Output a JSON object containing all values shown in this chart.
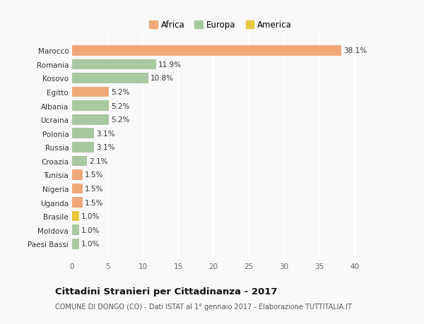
{
  "categories": [
    "Paesi Bassi",
    "Moldova",
    "Brasile",
    "Uganda",
    "Nigeria",
    "Tunisia",
    "Croazia",
    "Russia",
    "Polonia",
    "Ucraina",
    "Albania",
    "Egitto",
    "Kosovo",
    "Romania",
    "Marocco"
  ],
  "values": [
    1.0,
    1.0,
    1.0,
    1.5,
    1.5,
    1.5,
    2.1,
    3.1,
    3.1,
    5.2,
    5.2,
    5.2,
    10.8,
    11.9,
    38.1
  ],
  "colors": [
    "#a8c8a0",
    "#a8c8a0",
    "#e8c840",
    "#f0a878",
    "#f0a878",
    "#f0a878",
    "#a8c8a0",
    "#a8c8a0",
    "#a8c8a0",
    "#a8c8a0",
    "#a8c8a0",
    "#f0a878",
    "#a8c8a0",
    "#a8c8a0",
    "#f0a878"
  ],
  "africa_color": "#f0a878",
  "europa_color": "#a8c8a0",
  "america_color": "#e8c840",
  "background_color": "#f9f9f9",
  "grid_color": "#e8e8e8",
  "title": "Cittadini Stranieri per Cittadinanza - 2017",
  "subtitle": "COMUNE DI DONGO (CO) - Dati ISTAT al 1° gennaio 2017 - Elaborazione TUTTITALIA.IT",
  "xlim": [
    0,
    42
  ],
  "xticks": [
    0,
    5,
    10,
    15,
    20,
    25,
    30,
    35,
    40
  ],
  "legend_labels": [
    "Africa",
    "Europa",
    "America"
  ],
  "legend_colors": [
    "#f0a878",
    "#a8c8a0",
    "#e8c840"
  ]
}
